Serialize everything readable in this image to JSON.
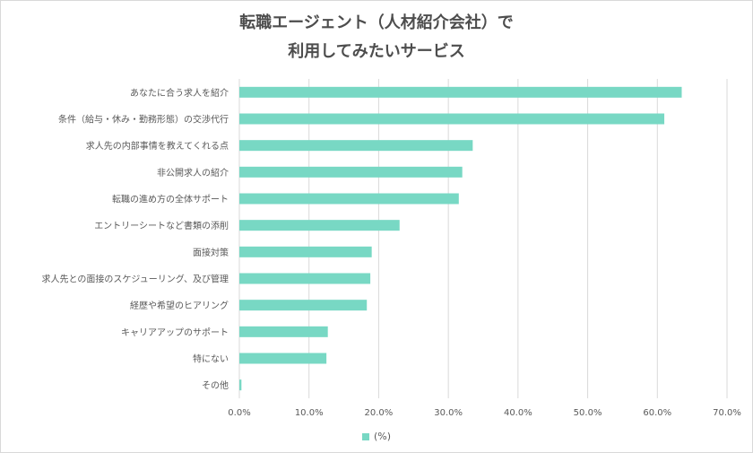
{
  "chart_data": {
    "type": "bar",
    "orientation": "horizontal",
    "title_lines": [
      "転職エージェント（人材紹介会社）で",
      "利用してみたいサービス"
    ],
    "categories": [
      "あなたに合う求人を紹介",
      "条件（給与・休み・勤務形態）の交渉代行",
      "求人先の内部事情を教えてくれる点",
      "非公開求人の紹介",
      "転職の進め方の全体サポート",
      "エントリーシートなど書類の添削",
      "面接対策",
      "求人先との面接のスケジューリング、及び管理",
      "経歴や希望のヒアリング",
      "キャリアアップのサポート",
      "特にない",
      "その他"
    ],
    "series": [
      {
        "name": "(%)",
        "values": [
          63.5,
          61.0,
          33.5,
          32.0,
          31.5,
          23.0,
          19.0,
          18.8,
          18.3,
          12.7,
          12.5,
          0.3
        ]
      }
    ],
    "xlim": [
      0,
      70
    ],
    "xticks": [
      "0.0%",
      "10.0%",
      "20.0%",
      "30.0%",
      "40.0%",
      "50.0%",
      "60.0%",
      "70.0%"
    ],
    "xgrid": true,
    "legend_position": "bottom",
    "bar_color": "#78d8c4"
  }
}
